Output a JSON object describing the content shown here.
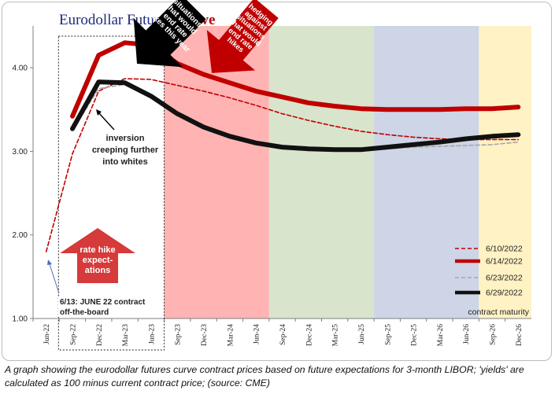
{
  "chart_data": {
    "type": "line",
    "title_part1": "Eurodollar Futures ",
    "title_part2": "Curve",
    "x_axis_title": "contract maturity",
    "categories": [
      "Jun-22",
      "Sep-22",
      "Dec-22",
      "Mar-23",
      "Jun-23",
      "Sep-23",
      "Dec-23",
      "Mar-24",
      "Jun-24",
      "Sep-24",
      "Dec-24",
      "Mar-25",
      "Jun-25",
      "Sep-25",
      "Dec-25",
      "Mar-26",
      "Jun-26",
      "Sep-26",
      "Dec-26"
    ],
    "ylim": [
      1.0,
      4.5
    ],
    "yticks": [
      "1.00",
      "2.00",
      "3.00",
      "4.00"
    ],
    "ytick_values": [
      1.0,
      2.0,
      3.0,
      4.0
    ],
    "series": [
      {
        "name": "6/10/2022",
        "color": "#c00000",
        "style": "dashed",
        "width": 1.6,
        "values": [
          1.8,
          2.97,
          3.72,
          3.87,
          3.86,
          3.79,
          3.72,
          3.64,
          3.55,
          3.45,
          3.37,
          3.3,
          3.24,
          3.2,
          3.17,
          3.15,
          3.14,
          3.14,
          3.14
        ]
      },
      {
        "name": "6/14/2022",
        "color": "#c00000",
        "style": "solid",
        "width": 6,
        "values": [
          null,
          3.42,
          4.15,
          4.3,
          4.27,
          4.05,
          3.92,
          3.82,
          3.72,
          3.65,
          3.58,
          3.54,
          3.51,
          3.5,
          3.5,
          3.5,
          3.51,
          3.51,
          3.53
        ]
      },
      {
        "name": "6/23/2022",
        "color": "#a6a6a6",
        "style": "dashed",
        "width": 1.6,
        "values": [
          null,
          3.25,
          3.75,
          3.8,
          3.65,
          3.45,
          3.3,
          3.18,
          3.08,
          3.03,
          3.02,
          3.02,
          3.02,
          3.03,
          3.05,
          3.06,
          3.07,
          3.08,
          3.11
        ]
      },
      {
        "name": "6/29/2022",
        "color": "#111111",
        "style": "solid",
        "width": 6,
        "values": [
          null,
          3.27,
          3.83,
          3.82,
          3.66,
          3.45,
          3.29,
          3.18,
          3.1,
          3.05,
          3.03,
          3.02,
          3.02,
          3.05,
          3.08,
          3.11,
          3.15,
          3.18,
          3.2
        ]
      }
    ],
    "bands": [
      {
        "from": "Sep-23",
        "to": "Jun-24",
        "color": "#ffb3b3"
      },
      {
        "from": "Sep-24",
        "to": "Jun-25",
        "color": "#d8e4cc"
      },
      {
        "from": "Sep-25",
        "to": "Jun-26",
        "color": "#cdd5e6"
      },
      {
        "from": "Sep-26",
        "to": "Dec-26",
        "color": "#fff2c4"
      }
    ],
    "annotations": {
      "inversion": [
        "inversion",
        "creeping further",
        "into whites"
      ],
      "june_contract": [
        "6/13: JUNE 22 contract",
        "off-the-board"
      ],
      "rate_hike": [
        "rate hike",
        "expect-",
        "ations"
      ],
      "black_arrow": [
        "situations",
        "that would",
        "end rate",
        "hikes this year"
      ],
      "red_arrow": [
        "hedging",
        "against",
        "situations",
        "that would",
        "end rate",
        "hikes"
      ]
    },
    "colors": {
      "title_blue": "#1f2b7a",
      "title_red": "#c00000",
      "arrow_red": "#d63a3a",
      "arrow_dark_red": "#c00000"
    }
  },
  "caption": "A graph showing the eurodollar futures curve contract prices based on future expectations for 3-month LIBOR; 'yields' are calculated as 100 minus current contract price; (source: CME)"
}
